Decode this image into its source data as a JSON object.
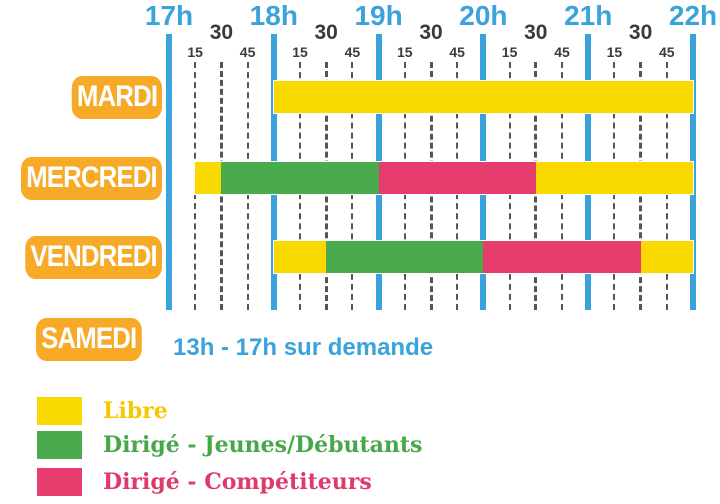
{
  "hours": [
    "17h",
    "18h",
    "19h",
    "20h",
    "21h",
    "22h"
  ],
  "quarter_labels": [
    "15",
    "30",
    "45"
  ],
  "days": [
    {
      "label": "MARDI",
      "segments": [
        {
          "start": "18:00",
          "end": "22:00",
          "type": "libre"
        }
      ]
    },
    {
      "label": "MERCREDI",
      "segments": [
        {
          "start": "17:15",
          "end": "17:30",
          "type": "libre"
        },
        {
          "start": "17:30",
          "end": "19:00",
          "type": "jeunes"
        },
        {
          "start": "19:00",
          "end": "20:30",
          "type": "competiteurs"
        },
        {
          "start": "20:30",
          "end": "22:00",
          "type": "libre"
        }
      ]
    },
    {
      "label": "VENDREDI",
      "segments": [
        {
          "start": "18:00",
          "end": "18:30",
          "type": "libre"
        },
        {
          "start": "18:30",
          "end": "20:00",
          "type": "jeunes"
        },
        {
          "start": "20:00",
          "end": "21:30",
          "type": "competiteurs"
        },
        {
          "start": "21:30",
          "end": "22:00",
          "type": "libre"
        }
      ]
    }
  ],
  "samedi": {
    "label": "SAMEDI",
    "note": "13h - 17h sur demande"
  },
  "legend": [
    {
      "type": "libre",
      "label": "Libre",
      "color": "#f9d900",
      "text_color": "#f5c800"
    },
    {
      "type": "jeunes",
      "label": "Dirigé - Jeunes/Débutants",
      "color": "#4aaa4e",
      "text_color": "#47a84a"
    },
    {
      "type": "competiteurs",
      "label": "Dirigé - Compétiteurs",
      "color": "#e63c6e",
      "text_color": "#e03a6b"
    }
  ],
  "colors": {
    "hour_line": "#3aa3db",
    "day_label_bg": "#f7a928",
    "note": "#3aa3db"
  }
}
